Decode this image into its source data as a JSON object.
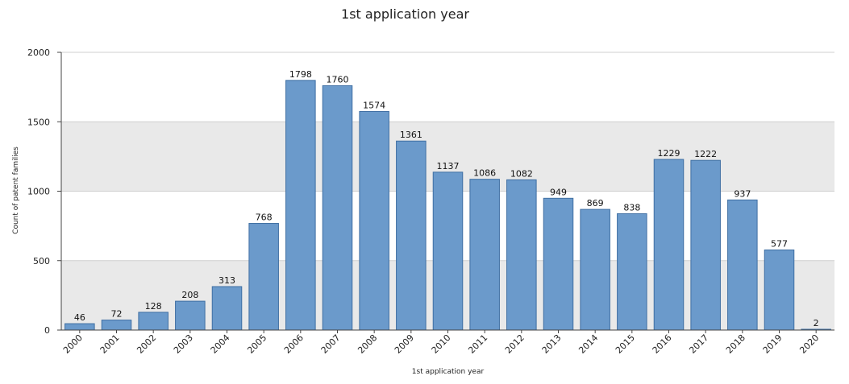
{
  "chart_data": {
    "type": "bar",
    "title": "1st application year",
    "xlabel": "1st application year",
    "ylabel": "Count of patent families",
    "categories": [
      "2000",
      "2001",
      "2002",
      "2003",
      "2004",
      "2005",
      "2006",
      "2007",
      "2008",
      "2009",
      "2010",
      "2011",
      "2012",
      "2013",
      "2014",
      "2015",
      "2016",
      "2017",
      "2018",
      "2019",
      "2020"
    ],
    "values": [
      46,
      72,
      128,
      208,
      313,
      768,
      1798,
      1760,
      1574,
      1361,
      1137,
      1086,
      1082,
      949,
      869,
      838,
      1229,
      1222,
      937,
      577,
      2
    ],
    "ylim": [
      0,
      2000
    ],
    "yticks": [
      "0",
      "500",
      "1000",
      "1500",
      "2000"
    ],
    "grid": true,
    "colors": {
      "bar_fill": "#6b9acb",
      "bar_stroke": "#3f6fa3",
      "band": "#e9e9e9",
      "grid": "#cfcfcf"
    }
  }
}
